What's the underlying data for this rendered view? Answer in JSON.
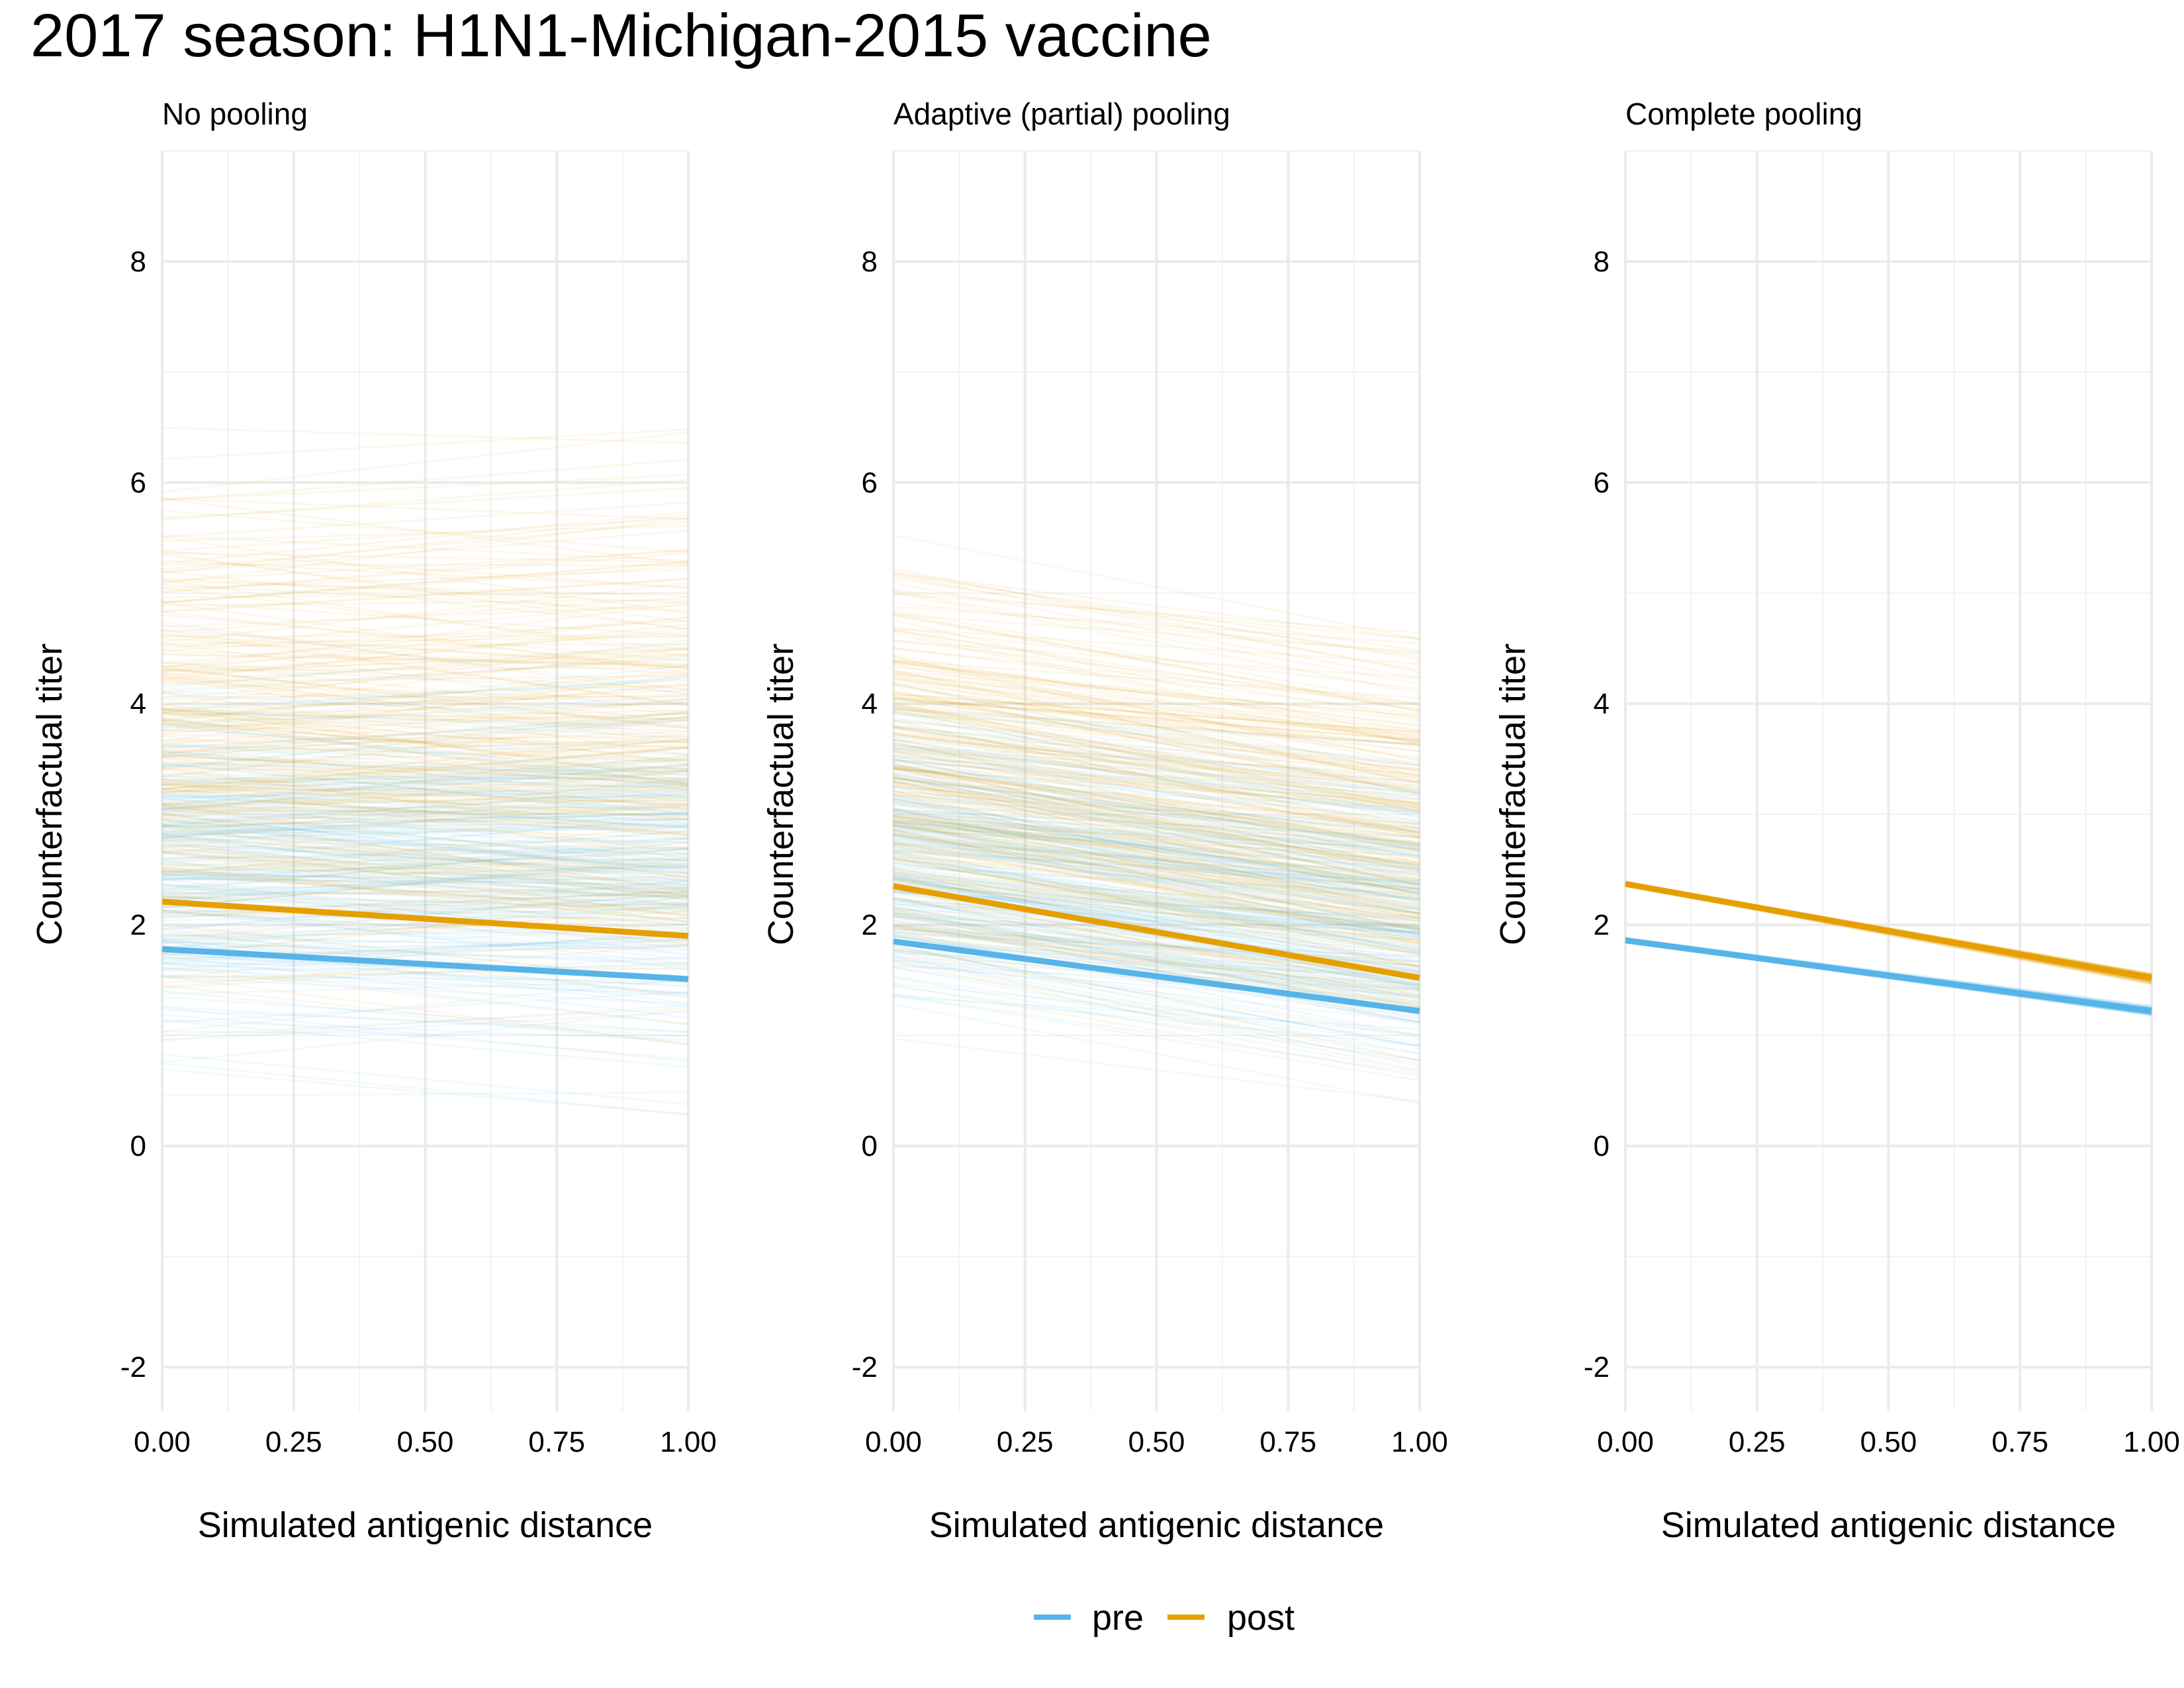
{
  "title": "2017 season: H1N1-Michigan-2015 vaccine",
  "legend": {
    "position": "bottom",
    "items": [
      {
        "label": "pre",
        "color": "#56B4E9"
      },
      {
        "label": "post",
        "color": "#E69F00"
      }
    ]
  },
  "colors": {
    "pre": "#56B4E9",
    "post": "#E69F00",
    "grid": "#EBEBEB"
  },
  "chart_data": [
    {
      "type": "line",
      "panel_title": "No pooling",
      "xlabel": "Simulated antigenic distance",
      "ylabel": "Counterfactual titer",
      "xlim": [
        0,
        1
      ],
      "ylim": [
        -2.4,
        9
      ],
      "xticks": [
        "0.00",
        "0.25",
        "0.50",
        "0.75",
        "1.00"
      ],
      "yticks": [
        "-2",
        "0",
        "2",
        "4",
        "6",
        "8"
      ],
      "grid": true,
      "series": [
        {
          "name": "pre",
          "x": [
            0,
            1
          ],
          "y": [
            1.78,
            1.51
          ],
          "summary": true
        },
        {
          "name": "post",
          "x": [
            0,
            1
          ],
          "y": [
            2.21,
            1.9
          ],
          "summary": true
        }
      ],
      "individual_lines": {
        "pre": {
          "intercept_range": [
            0.2,
            4.9
          ],
          "slope_range": [
            -0.6,
            0.5
          ],
          "spread": "wide"
        },
        "post": {
          "intercept_range": [
            0.5,
            6.9
          ],
          "slope_range": [
            -0.7,
            0.6
          ],
          "spread": "wide"
        }
      }
    },
    {
      "type": "line",
      "panel_title": "Adaptive (partial) pooling",
      "xlabel": "Simulated antigenic distance",
      "ylabel": "Counterfactual titer",
      "xlim": [
        0,
        1
      ],
      "ylim": [
        -2.4,
        9
      ],
      "xticks": [
        "0.00",
        "0.25",
        "0.50",
        "0.75",
        "1.00"
      ],
      "yticks": [
        "-2",
        "0",
        "2",
        "4",
        "6",
        "8"
      ],
      "grid": true,
      "series": [
        {
          "name": "pre",
          "x": [
            0,
            1
          ],
          "y": [
            1.85,
            1.22
          ],
          "summary": true
        },
        {
          "name": "post",
          "x": [
            0,
            1
          ],
          "y": [
            2.35,
            1.52
          ],
          "summary": true
        }
      ],
      "individual_lines": {
        "pre": {
          "intercept_range": [
            0.6,
            4.5
          ],
          "slope_range": [
            -1.0,
            -0.2
          ],
          "spread": "moderate"
        },
        "post": {
          "intercept_range": [
            1.0,
            6.0
          ],
          "slope_range": [
            -1.1,
            -0.3
          ],
          "spread": "moderate"
        }
      }
    },
    {
      "type": "line",
      "panel_title": "Complete pooling",
      "xlabel": "Simulated antigenic distance",
      "ylabel": "Counterfactual titer",
      "xlim": [
        0,
        1
      ],
      "ylim": [
        -2.4,
        9
      ],
      "xticks": [
        "0.00",
        "0.25",
        "0.50",
        "0.75",
        "1.00"
      ],
      "yticks": [
        "-2",
        "0",
        "2",
        "4",
        "6",
        "8"
      ],
      "grid": true,
      "series": [
        {
          "name": "pre",
          "x": [
            0,
            1
          ],
          "y": [
            1.86,
            1.22
          ],
          "summary": true
        },
        {
          "name": "post",
          "x": [
            0,
            1
          ],
          "y": [
            2.37,
            1.52
          ],
          "summary": true
        }
      ],
      "individual_lines": {
        "pre": {
          "intercept_range": [
            1.84,
            1.88
          ],
          "slope_range": [
            -0.67,
            -0.61
          ],
          "spread": "tight"
        },
        "post": {
          "intercept_range": [
            2.35,
            2.39
          ],
          "slope_range": [
            -0.89,
            -0.81
          ],
          "spread": "tight"
        }
      }
    }
  ]
}
